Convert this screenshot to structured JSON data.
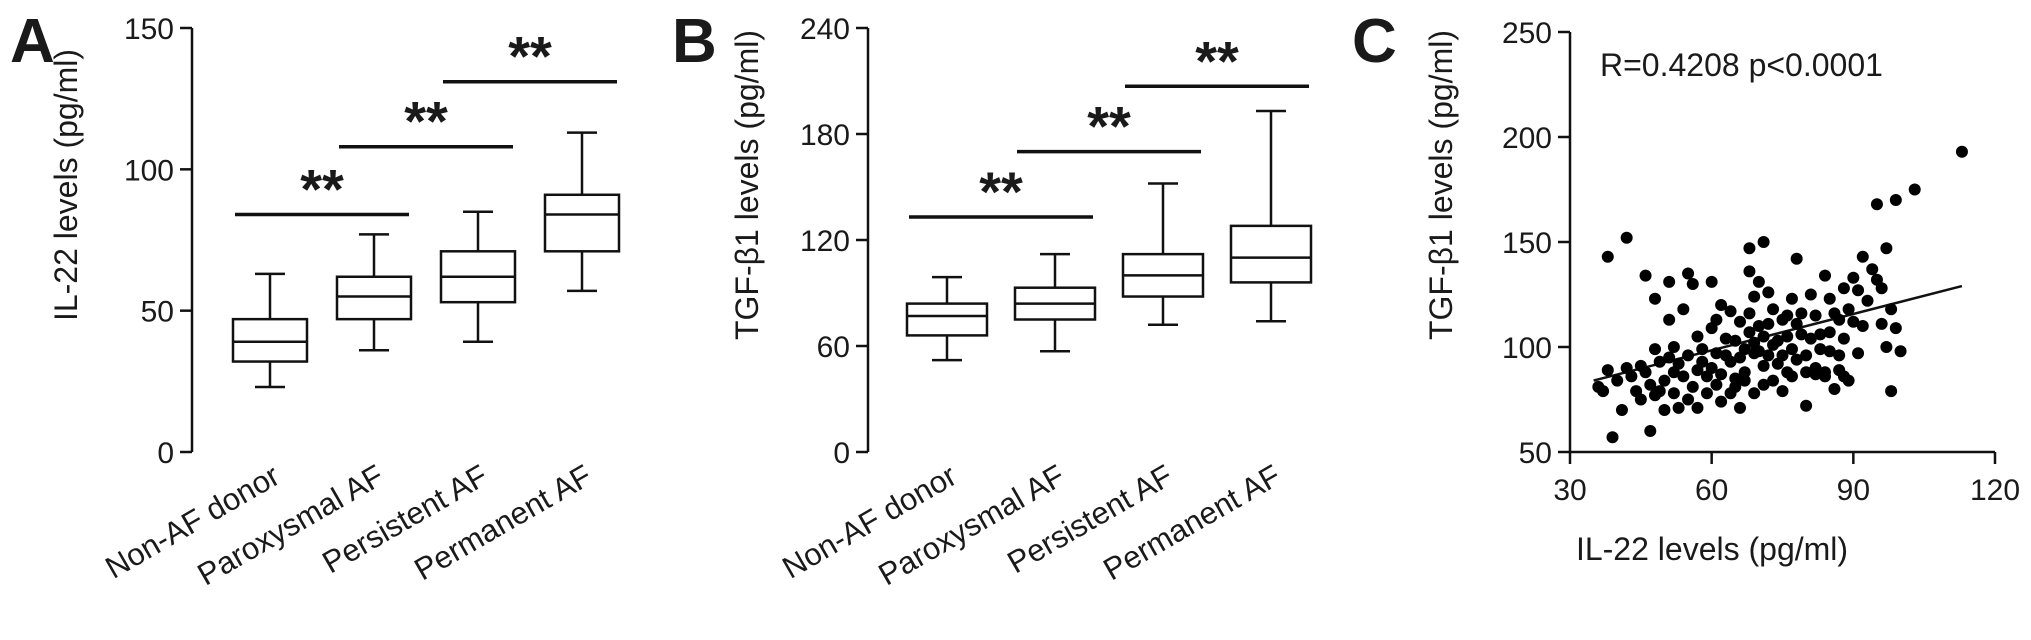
{
  "chart_data": [
    {
      "type": "box",
      "panel": "A",
      "ylabel": "IL-22 levels (pg/ml)",
      "ylim": [
        0,
        150
      ],
      "yticks": [
        0,
        50,
        100,
        150
      ],
      "categories": [
        "Non-AF donor",
        "Paroxysmal AF",
        "Persistent AF",
        "Permanent AF"
      ],
      "boxes": [
        {
          "min": 23,
          "q1": 32,
          "median": 39,
          "q3": 47,
          "max": 63
        },
        {
          "min": 36,
          "q1": 47,
          "median": 55,
          "q3": 62,
          "max": 77
        },
        {
          "min": 39,
          "q1": 53,
          "median": 62,
          "q3": 71,
          "max": 85
        },
        {
          "min": 57,
          "q1": 71,
          "median": 84,
          "q3": 91,
          "max": 113
        }
      ],
      "significance": [
        {
          "from": 0,
          "to": 1,
          "y": 84,
          "label": "**"
        },
        {
          "from": 1,
          "to": 2,
          "y": 108,
          "label": "**"
        },
        {
          "from": 2,
          "to": 3,
          "y": 131,
          "label": "**"
        }
      ]
    },
    {
      "type": "box",
      "panel": "B",
      "ylabel": "TGF-β1  levels (pg/ml)",
      "ylim": [
        0,
        240
      ],
      "yticks": [
        0,
        60,
        120,
        180,
        240
      ],
      "categories": [
        "Non-AF donor",
        "Paroxysmal AF",
        "Persistent AF",
        "Permanent AF"
      ],
      "boxes": [
        {
          "min": 52,
          "q1": 66,
          "median": 77,
          "q3": 84,
          "max": 99
        },
        {
          "min": 57,
          "q1": 75,
          "median": 84,
          "q3": 93,
          "max": 112
        },
        {
          "min": 72,
          "q1": 88,
          "median": 100,
          "q3": 112,
          "max": 152
        },
        {
          "min": 74,
          "q1": 96,
          "median": 110,
          "q3": 128,
          "max": 193
        }
      ],
      "significance": [
        {
          "from": 0,
          "to": 1,
          "y": 133,
          "label": "**"
        },
        {
          "from": 1,
          "to": 2,
          "y": 170,
          "label": "**"
        },
        {
          "from": 2,
          "to": 3,
          "y": 207,
          "label": "**"
        }
      ]
    },
    {
      "type": "scatter",
      "panel": "C",
      "xlabel": "IL-22 levels (pg/ml)",
      "ylabel": "TGF-β1  levels (pg/ml)",
      "xlim": [
        30,
        120
      ],
      "ylim": [
        50,
        250
      ],
      "xticks": [
        30,
        60,
        90,
        120
      ],
      "yticks": [
        50,
        100,
        150,
        200,
        250
      ],
      "annotation": "R=0.4208 p<0.0001",
      "fit_line": {
        "x": [
          35,
          113
        ],
        "y": [
          84,
          129
        ]
      },
      "points": [
        [
          36,
          81
        ],
        [
          37,
          79
        ],
        [
          38,
          89
        ],
        [
          38,
          143
        ],
        [
          39,
          57
        ],
        [
          40,
          84
        ],
        [
          41,
          70
        ],
        [
          42,
          152
        ],
        [
          42,
          90
        ],
        [
          43,
          86
        ],
        [
          44,
          79
        ],
        [
          45,
          91
        ],
        [
          45,
          75
        ],
        [
          46,
          88
        ],
        [
          46,
          134
        ],
        [
          47,
          60
        ],
        [
          47,
          82
        ],
        [
          48,
          99
        ],
        [
          48,
          77
        ],
        [
          48,
          123
        ],
        [
          49,
          79
        ],
        [
          49,
          93
        ],
        [
          50,
          84
        ],
        [
          50,
          70
        ],
        [
          51,
          95
        ],
        [
          51,
          113
        ],
        [
          51,
          131
        ],
        [
          52,
          88
        ],
        [
          52,
          100
        ],
        [
          52,
          78
        ],
        [
          53,
          71
        ],
        [
          53,
          92
        ],
        [
          54,
          118
        ],
        [
          54,
          86
        ],
        [
          55,
          75
        ],
        [
          55,
          135
        ],
        [
          55,
          96
        ],
        [
          56,
          81
        ],
        [
          56,
          130
        ],
        [
          57,
          105
        ],
        [
          57,
          89
        ],
        [
          57,
          71
        ],
        [
          58,
          99
        ],
        [
          58,
          93
        ],
        [
          59,
          86
        ],
        [
          59,
          78
        ],
        [
          60,
          131
        ],
        [
          60,
          109
        ],
        [
          60,
          90
        ],
        [
          61,
          113
        ],
        [
          61,
          97
        ],
        [
          61,
          82
        ],
        [
          62,
          87
        ],
        [
          62,
          120
        ],
        [
          62,
          74
        ],
        [
          63,
          96
        ],
        [
          63,
          104
        ],
        [
          64,
          93
        ],
        [
          64,
          117
        ],
        [
          64,
          78
        ],
        [
          65,
          103
        ],
        [
          65,
          81
        ],
        [
          65,
          85
        ],
        [
          66,
          112
        ],
        [
          66,
          71
        ],
        [
          66,
          95
        ],
        [
          67,
          99
        ],
        [
          67,
          84
        ],
        [
          67,
          88
        ],
        [
          68,
          107
        ],
        [
          68,
          147
        ],
        [
          68,
          136
        ],
        [
          68,
          116
        ],
        [
          69,
          124
        ],
        [
          69,
          97
        ],
        [
          69,
          102
        ],
        [
          69,
          78
        ],
        [
          70,
          131
        ],
        [
          70,
          110
        ],
        [
          70,
          98
        ],
        [
          71,
          150
        ],
        [
          71,
          105
        ],
        [
          71,
          91
        ],
        [
          71,
          82
        ],
        [
          72,
          111
        ],
        [
          72,
          126
        ],
        [
          72,
          96
        ],
        [
          73,
          101
        ],
        [
          73,
          84
        ],
        [
          73,
          118
        ],
        [
          74,
          103
        ],
        [
          74,
          92
        ],
        [
          75,
          96
        ],
        [
          75,
          113
        ],
        [
          75,
          79
        ],
        [
          76,
          88
        ],
        [
          76,
          115
        ],
        [
          76,
          105
        ],
        [
          77,
          99
        ],
        [
          77,
          123
        ],
        [
          77,
          86
        ],
        [
          78,
          111
        ],
        [
          78,
          94
        ],
        [
          78,
          142
        ],
        [
          79,
          106
        ],
        [
          79,
          116
        ],
        [
          80,
          88
        ],
        [
          80,
          72
        ],
        [
          80,
          96
        ],
        [
          81,
          125
        ],
        [
          81,
          104
        ],
        [
          82,
          90
        ],
        [
          82,
          87
        ],
        [
          82,
          115
        ],
        [
          83,
          106
        ],
        [
          83,
          99
        ],
        [
          84,
          86
        ],
        [
          84,
          134
        ],
        [
          84,
          88
        ],
        [
          85,
          107
        ],
        [
          85,
          123
        ],
        [
          85,
          98
        ],
        [
          86,
          116
        ],
        [
          86,
          80
        ],
        [
          87,
          89
        ],
        [
          87,
          113
        ],
        [
          87,
          96
        ],
        [
          88,
          128
        ],
        [
          88,
          104
        ],
        [
          88,
          86
        ],
        [
          89,
          118
        ],
        [
          89,
          84
        ],
        [
          90,
          112
        ],
        [
          90,
          133
        ],
        [
          91,
          127
        ],
        [
          91,
          97
        ],
        [
          92,
          143
        ],
        [
          92,
          110
        ],
        [
          93,
          122
        ],
        [
          94,
          137
        ],
        [
          95,
          132
        ],
        [
          95,
          168
        ],
        [
          96,
          128
        ],
        [
          96,
          111
        ],
        [
          97,
          147
        ],
        [
          97,
          100
        ],
        [
          98,
          118
        ],
        [
          98,
          79
        ],
        [
          99,
          109
        ],
        [
          99,
          170
        ],
        [
          100,
          98
        ],
        [
          103,
          175
        ],
        [
          113,
          193
        ]
      ]
    }
  ]
}
